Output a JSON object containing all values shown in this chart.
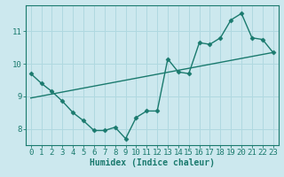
{
  "title": "",
  "xlabel": "Humidex (Indice chaleur)",
  "ylabel": "",
  "background_color": "#cce8ee",
  "grid_color": "#b0d8e0",
  "line_color": "#1a7a6e",
  "xlim": [
    -0.5,
    23.5
  ],
  "ylim": [
    7.5,
    11.8
  ],
  "xticks": [
    0,
    1,
    2,
    3,
    4,
    5,
    6,
    7,
    8,
    9,
    10,
    11,
    12,
    13,
    14,
    15,
    16,
    17,
    18,
    19,
    20,
    21,
    22,
    23
  ],
  "yticks": [
    8,
    9,
    10,
    11
  ],
  "data_x": [
    0,
    1,
    2,
    3,
    4,
    5,
    6,
    7,
    8,
    9,
    10,
    11,
    12,
    13,
    14,
    15,
    16,
    17,
    18,
    19,
    20,
    21,
    22,
    23
  ],
  "data_y": [
    9.7,
    9.4,
    9.15,
    8.85,
    8.5,
    8.25,
    7.95,
    7.95,
    8.05,
    7.7,
    8.35,
    8.55,
    8.55,
    10.15,
    9.75,
    9.7,
    10.65,
    10.6,
    10.8,
    11.35,
    11.55,
    10.8,
    10.75,
    10.35
  ],
  "trend_x": [
    0,
    23
  ],
  "trend_y": [
    8.95,
    10.35
  ],
  "marker": "D",
  "marker_size": 2.5,
  "line_width": 1.0,
  "xlabel_fontsize": 7,
  "tick_fontsize": 6.5
}
